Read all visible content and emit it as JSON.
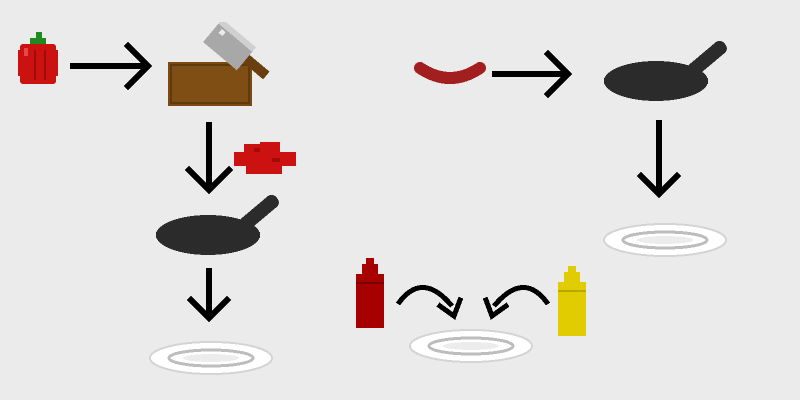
{
  "scene": {
    "type": "recipe-flow",
    "background_color": "#ebebeb"
  },
  "items": {
    "pepper": {
      "icon": "bell-pepper-icon",
      "color": "#cc1111"
    },
    "cleaver": {
      "icon": "cleaver-icon",
      "color": "#a0a0a0"
    },
    "board": {
      "icon": "cutting-board-icon",
      "color": "#7a4a12"
    },
    "chopped": {
      "icon": "chopped-pepper-icon",
      "color": "#cc1111"
    },
    "sausage": {
      "icon": "sausage-icon",
      "color": "#a31f1f"
    },
    "pan": {
      "icon": "frying-pan-icon",
      "color": "#2b2b2b"
    },
    "plate": {
      "icon": "plate-icon",
      "color": "#ffffff"
    },
    "ketchup": {
      "icon": "ketchup-bottle-icon",
      "color": "#a60000"
    },
    "mustard": {
      "icon": "mustard-bottle-icon",
      "color": "#e0cc00"
    },
    "arrow": {
      "icon": "arrow-icon",
      "color": "#000000"
    }
  }
}
